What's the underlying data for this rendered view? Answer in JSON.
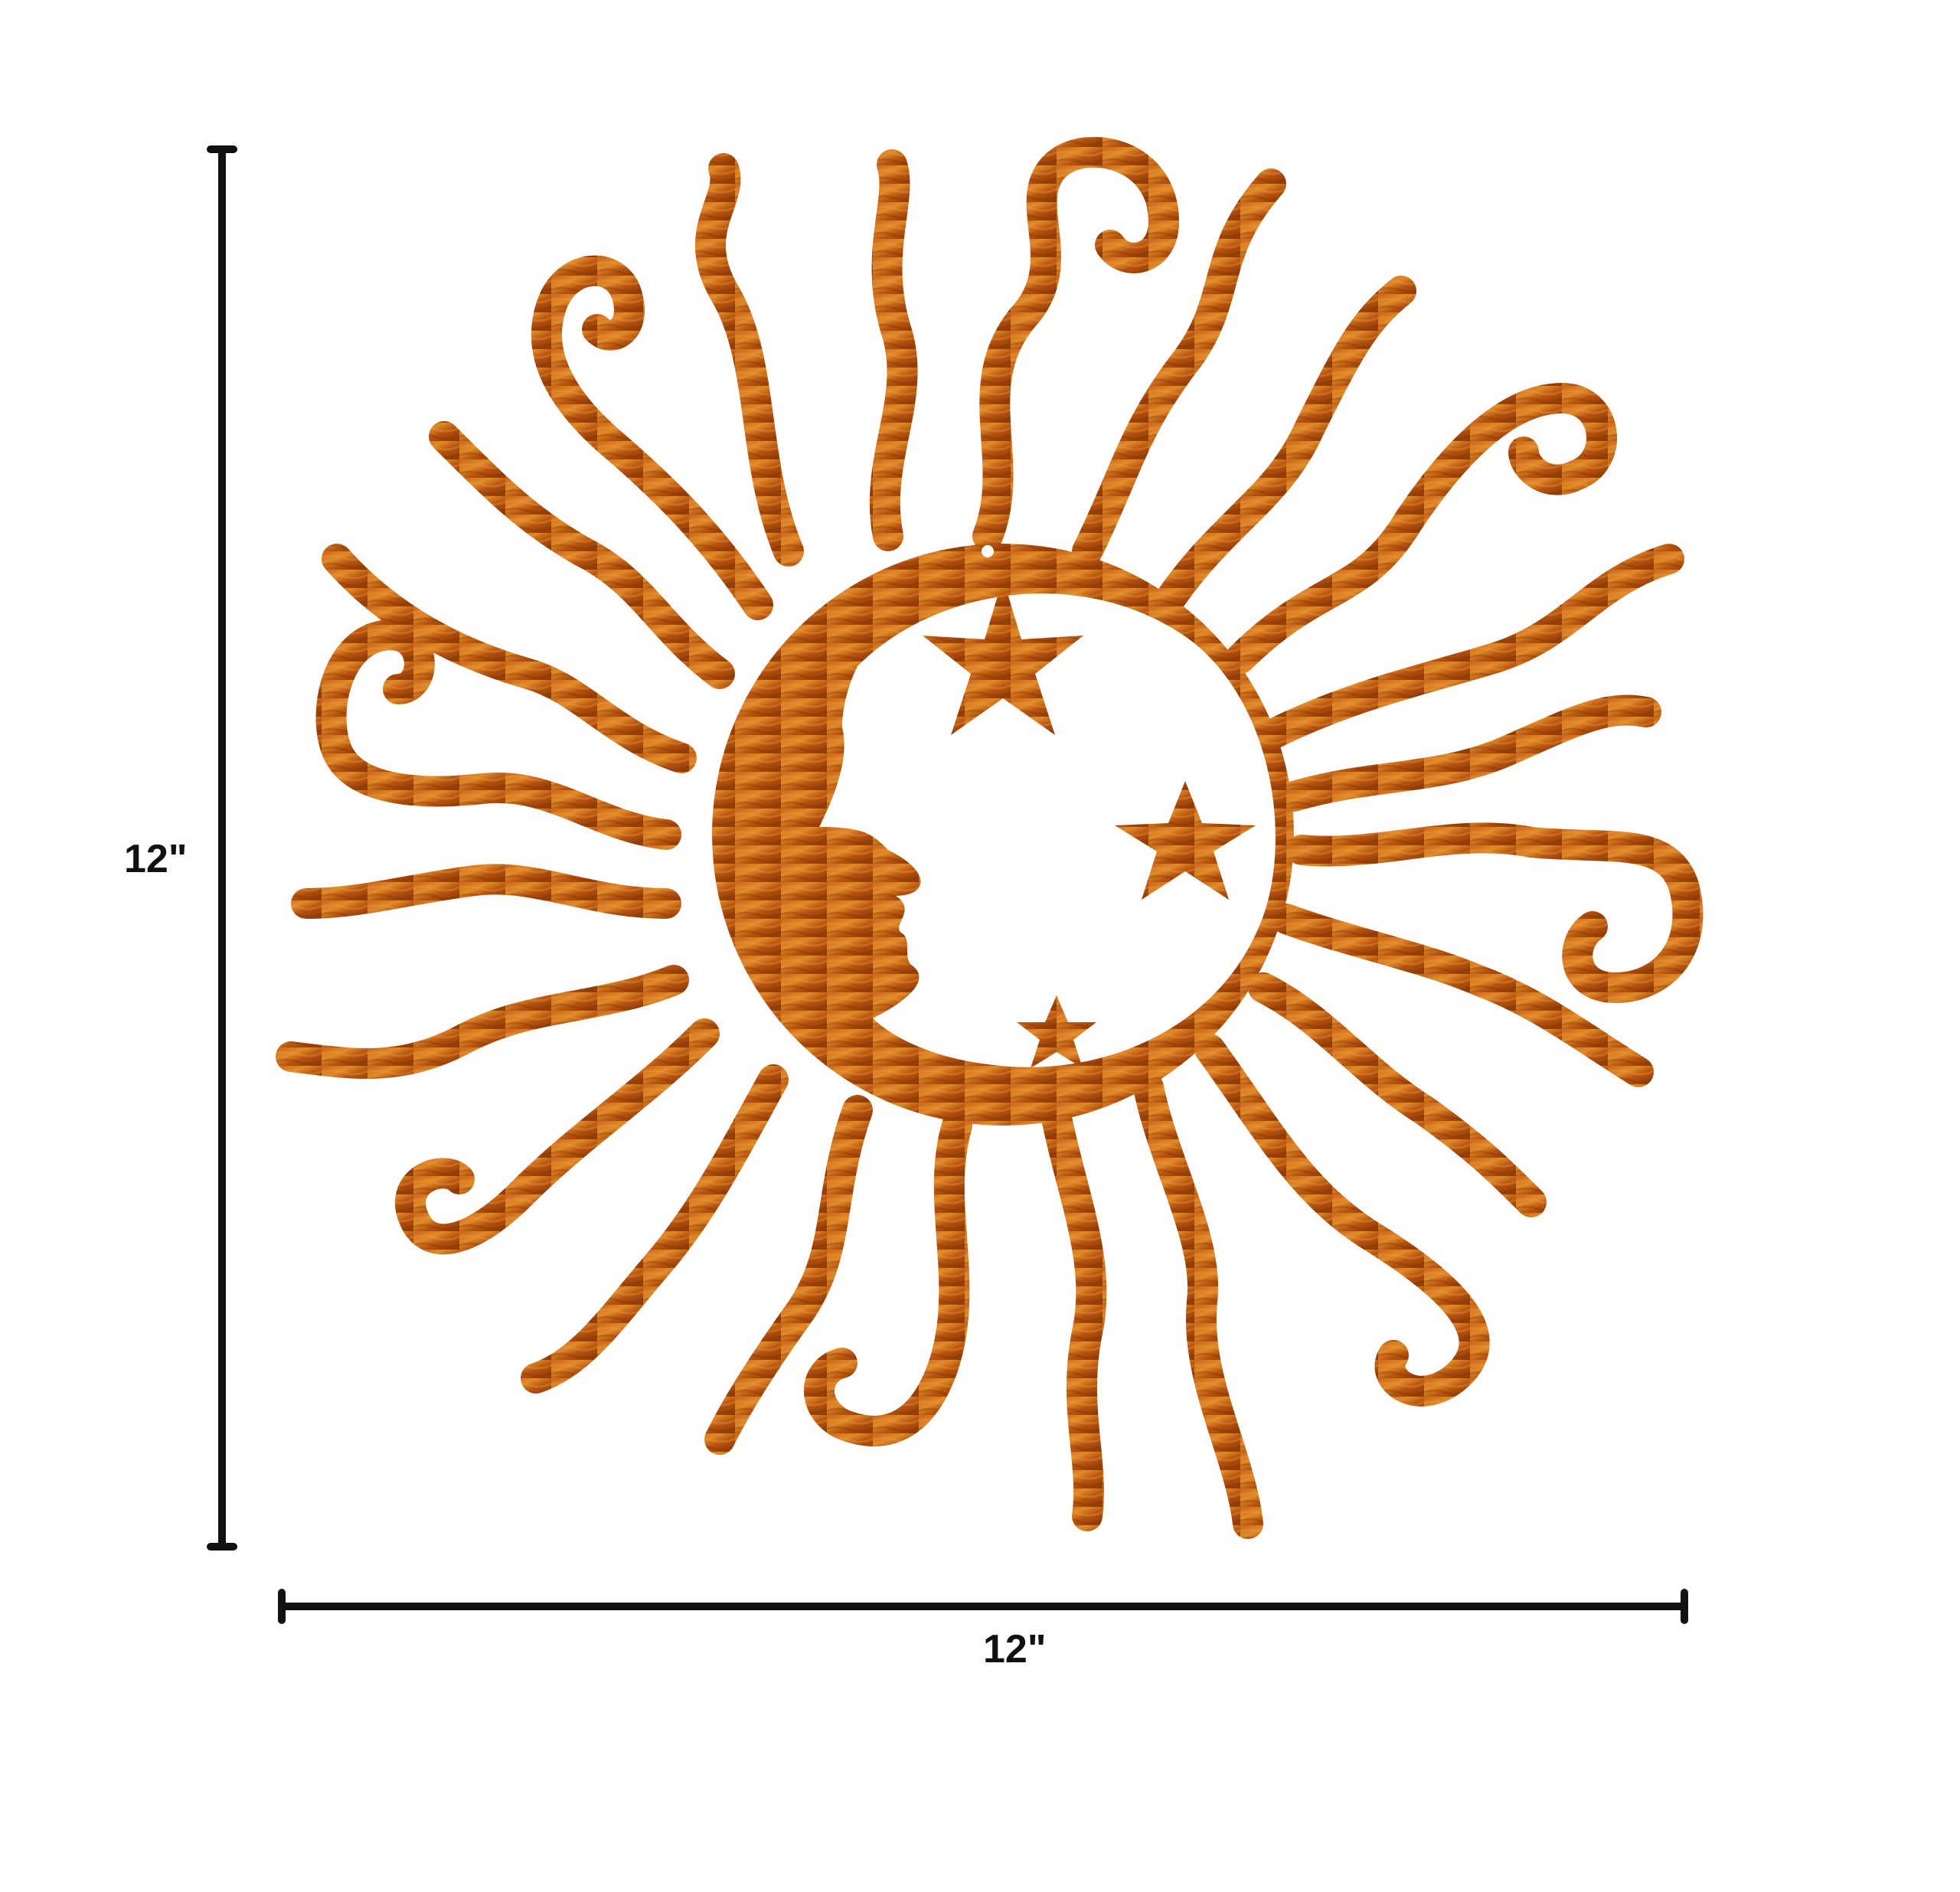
{
  "product": {
    "artwork": "sun-moon-stars-wall-art",
    "finish_color": "#b5520f",
    "highlight_color": "#e08a2a",
    "shadow_color": "#7a2f06"
  },
  "dimensions": {
    "height_label": "12\"",
    "width_label": "12\"",
    "line_color": "#111111"
  }
}
